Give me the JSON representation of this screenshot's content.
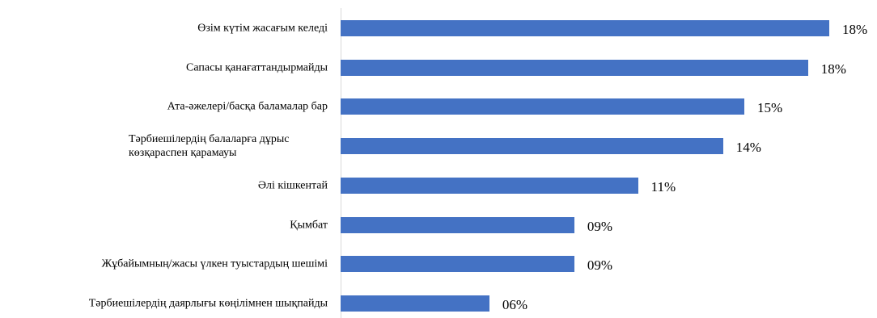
{
  "chart_data": {
    "type": "barh",
    "categories": [
      "Өзім күтім жасағым келеді",
      "Сапасы қанағаттандырмайды",
      "Ата-әжелері/басқа баламалар бар",
      "Тәрбиешілердің балаларға дұрыс көзқараспен қарамауы",
      "Әлі кішкентай",
      "Қымбат",
      "Жұбайымның/жасы үлкен туыстардың шешімі",
      "Тәрбиешілердің даярлығы көңілімнен шықпайды"
    ],
    "values": [
      18.4,
      17.6,
      15.2,
      14.4,
      11.2,
      8.8,
      8.8,
      5.6
    ],
    "value_labels": [
      "18%",
      "18%",
      "15%",
      "14%",
      "11%",
      "09%",
      "09%",
      "06%"
    ],
    "color": "#4472c4"
  }
}
